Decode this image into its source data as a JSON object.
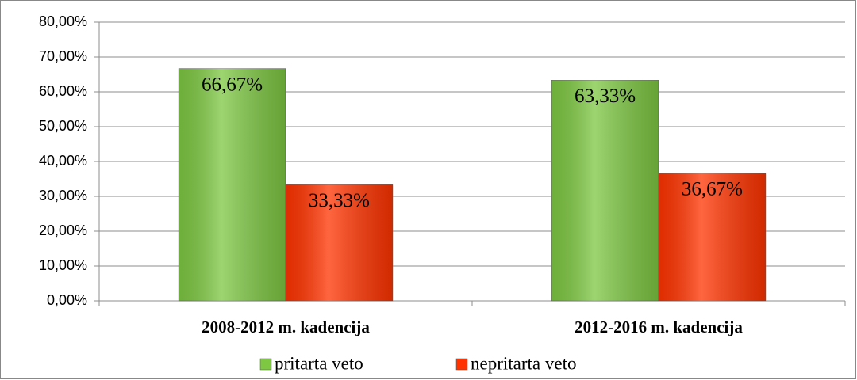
{
  "chart_data": {
    "type": "bar",
    "categories": [
      "2008-2012 m. kadencija",
      "2012-2016 m. kadencija"
    ],
    "series": [
      {
        "name": "pritarta veto",
        "color": "#7dc742",
        "values": [
          66.67,
          63.33
        ],
        "value_labels": [
          "66,67%",
          "63,33%"
        ]
      },
      {
        "name": "nepritarta veto",
        "color": "#ff3300",
        "values": [
          33.33,
          36.67
        ],
        "value_labels": [
          "33,33%",
          "36,67%"
        ]
      }
    ],
    "ylim": [
      0,
      80
    ],
    "yticks": [
      {
        "value": 0,
        "label": "0,00%"
      },
      {
        "value": 10,
        "label": "10,00%"
      },
      {
        "value": 20,
        "label": "20,00%"
      },
      {
        "value": 30,
        "label": "30,00%"
      },
      {
        "value": 40,
        "label": "40,00%"
      },
      {
        "value": 50,
        "label": "50,00%"
      },
      {
        "value": 60,
        "label": "60,00%"
      },
      {
        "value": 70,
        "label": "70,00%"
      },
      {
        "value": 80,
        "label": "80,00%"
      }
    ],
    "grid": true,
    "legend": "bottom"
  }
}
